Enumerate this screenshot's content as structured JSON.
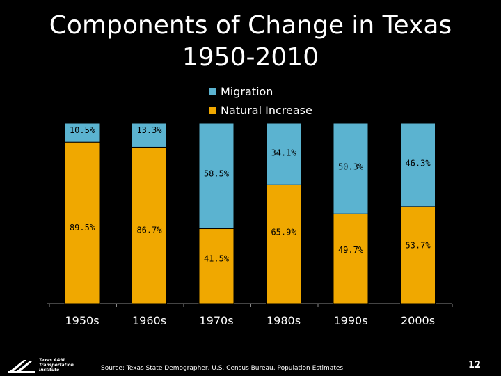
{
  "title": {
    "line1": "Components of Change in Texas",
    "line2": "1950-2010"
  },
  "legend": [
    {
      "label": "Migration",
      "color": "#5BB3D0"
    },
    {
      "label": "Natural Increase",
      "color": "#F0A800"
    }
  ],
  "chart_data": {
    "type": "bar",
    "stacked": true,
    "normalized": true,
    "categories": [
      "1950s",
      "1960s",
      "1970s",
      "1980s",
      "1990s",
      "2000s"
    ],
    "series": [
      {
        "name": "Natural Increase",
        "color": "#F0A800",
        "values": [
          89.5,
          86.7,
          41.5,
          65.9,
          49.7,
          53.7
        ],
        "labels": [
          "89.5%",
          "86.7%",
          "41.5%",
          "65.9%",
          "49.7%",
          "53.7%"
        ]
      },
      {
        "name": "Migration",
        "color": "#5BB3D0",
        "values": [
          10.5,
          13.3,
          58.5,
          34.1,
          50.3,
          46.3
        ],
        "labels": [
          "10.5%",
          "13.3%",
          "58.5%",
          "34.1%",
          "50.3%",
          "46.3%"
        ]
      }
    ],
    "ylim": [
      0,
      100
    ],
    "legend_position": "top"
  },
  "footer": {
    "source": "Source: Texas State Demographer, U.S. Census Bureau, Population Estimates",
    "page_number": "12",
    "logo_lines": [
      "Texas A&M",
      "Transportation",
      "Institute"
    ]
  }
}
